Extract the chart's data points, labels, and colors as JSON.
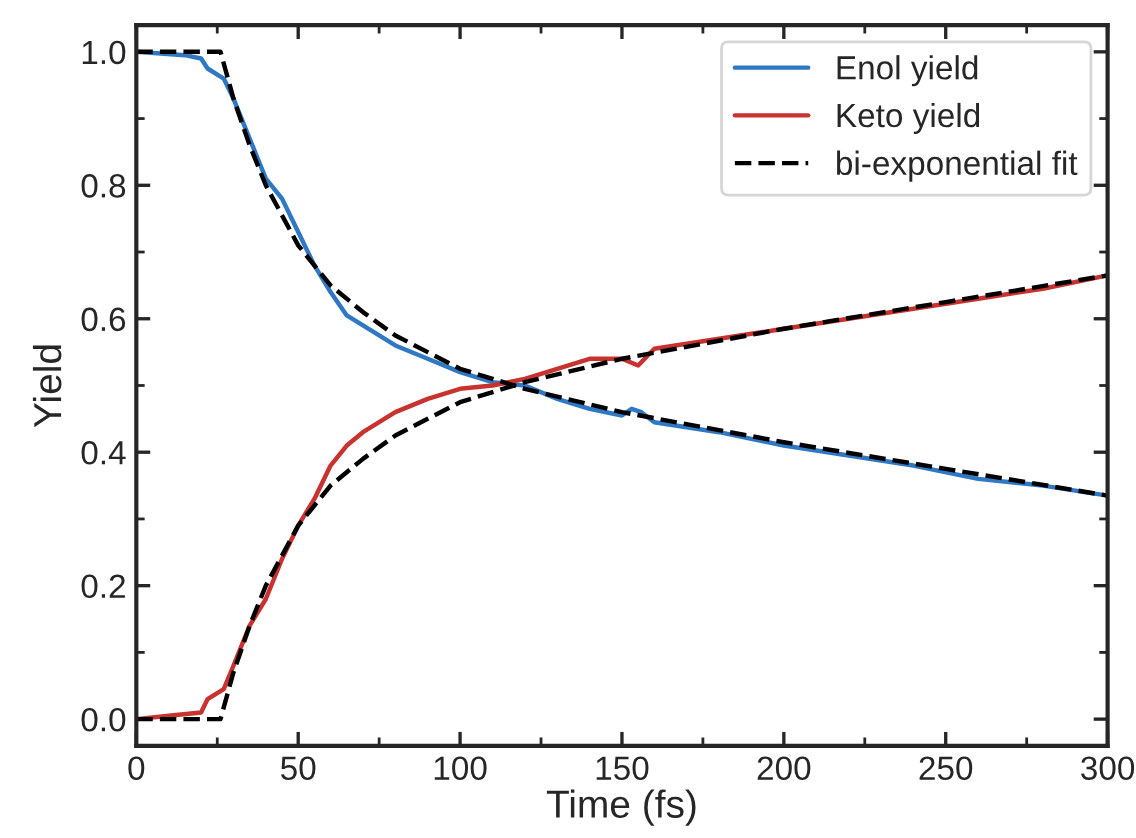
{
  "chart_data": {
    "type": "line",
    "xlabel": "Time (fs)",
    "ylabel": "Yield",
    "xlim": [
      0,
      300
    ],
    "xticks": [
      0,
      50,
      100,
      150,
      200,
      250,
      300
    ],
    "ylim": [
      -0.04,
      1.04
    ],
    "yticks": [
      {
        "value": 0.0,
        "label": "0.0"
      },
      0.2,
      0.4,
      0.6,
      0.8,
      {
        "value": 1.0,
        "label": "1.0"
      }
    ],
    "grid": false,
    "legend": "top right",
    "line_style": "solid",
    "marker": "none",
    "series": [
      {
        "name": "Enol yield",
        "color": "#2f78c4",
        "x": [
          0,
          15,
          20,
          22,
          27,
          30,
          35,
          40,
          45,
          50,
          55,
          60,
          65,
          70,
          80,
          90,
          100,
          110,
          120,
          130,
          140,
          150,
          153,
          156,
          160,
          180,
          200,
          220,
          240,
          260,
          280,
          300
        ],
        "values": [
          1.0,
          0.995,
          0.99,
          0.975,
          0.96,
          0.93,
          0.87,
          0.81,
          0.78,
          0.73,
          0.68,
          0.64,
          0.605,
          0.59,
          0.56,
          0.54,
          0.52,
          0.505,
          0.5,
          0.48,
          0.465,
          0.455,
          0.465,
          0.46,
          0.445,
          0.43,
          0.41,
          0.395,
          0.38,
          0.36,
          0.35,
          0.335
        ]
      },
      {
        "name": "Keto yield",
        "color": "#c8322f",
        "x": [
          0,
          10,
          20,
          22,
          27,
          30,
          35,
          40,
          45,
          50,
          55,
          60,
          65,
          70,
          80,
          90,
          100,
          110,
          120,
          130,
          140,
          150,
          155,
          160,
          180,
          200,
          220,
          240,
          260,
          280,
          300
        ],
        "values": [
          0.0,
          0.005,
          0.01,
          0.03,
          0.045,
          0.08,
          0.14,
          0.18,
          0.24,
          0.29,
          0.33,
          0.38,
          0.41,
          0.43,
          0.46,
          0.48,
          0.495,
          0.5,
          0.51,
          0.525,
          0.54,
          0.54,
          0.53,
          0.555,
          0.57,
          0.585,
          0.6,
          0.615,
          0.63,
          0.645,
          0.665
        ]
      },
      {
        "name": "bi-exponential fit",
        "color": "#000000",
        "line_style": "dashed",
        "x": [
          0,
          26,
          30,
          35,
          40,
          50,
          60,
          70,
          80,
          90,
          100,
          120,
          150,
          200,
          250,
          300
        ],
        "values": [
          1.0,
          1.0,
          0.93,
          0.86,
          0.8,
          0.71,
          0.65,
          0.61,
          0.575,
          0.55,
          0.525,
          0.495,
          0.46,
          0.415,
          0.375,
          0.335
        ]
      },
      {
        "color": "#000000",
        "line_style": "dashed",
        "x": [
          0,
          26,
          30,
          35,
          40,
          50,
          60,
          70,
          80,
          90,
          100,
          120,
          150,
          200,
          250,
          300
        ],
        "values": [
          0.0,
          0.0,
          0.07,
          0.14,
          0.2,
          0.29,
          0.35,
          0.39,
          0.425,
          0.45,
          0.475,
          0.505,
          0.54,
          0.585,
          0.625,
          0.665
        ]
      }
    ]
  }
}
